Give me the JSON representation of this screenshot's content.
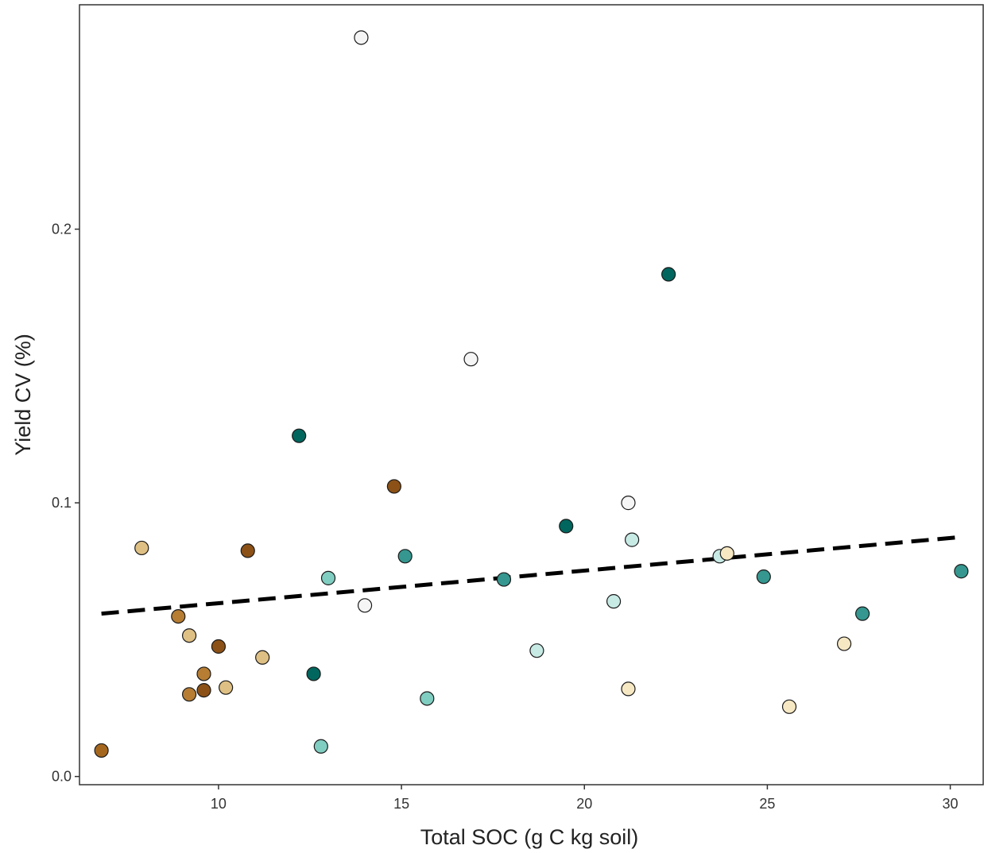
{
  "chart_data": {
    "type": "scatter",
    "title": "",
    "xlabel": "Total SOC (g C kg soil)",
    "ylabel": "Yield CV (%)",
    "xlim": [
      6.2,
      30.9
    ],
    "ylim": [
      -0.003,
      0.282
    ],
    "x_ticks": [
      10,
      15,
      20,
      25,
      30
    ],
    "y_ticks": [
      0.0,
      0.1,
      0.2
    ],
    "x_tick_labels": [
      "10",
      "15",
      "20",
      "25",
      "30"
    ],
    "y_tick_labels": [
      "0.0",
      "0.1",
      "0.2"
    ],
    "grid": false,
    "legend": "none",
    "trend_line": {
      "style": "dashed",
      "color": "#000000",
      "x": [
        6.8,
        30.3
      ],
      "y": [
        0.0595,
        0.0875
      ]
    },
    "points": [
      {
        "x": 6.8,
        "y": 0.0095,
        "color": "#a5671e"
      },
      {
        "x": 7.9,
        "y": 0.0835,
        "color": "#dfc084"
      },
      {
        "x": 8.9,
        "y": 0.0585,
        "color": "#b67d33"
      },
      {
        "x": 9.2,
        "y": 0.0515,
        "color": "#dfc084"
      },
      {
        "x": 9.2,
        "y": 0.03,
        "color": "#b67d33"
      },
      {
        "x": 9.6,
        "y": 0.0375,
        "color": "#b67d33"
      },
      {
        "x": 9.6,
        "y": 0.0315,
        "color": "#8c5116"
      },
      {
        "x": 10.0,
        "y": 0.0475,
        "color": "#8c5116"
      },
      {
        "x": 10.2,
        "y": 0.0325,
        "color": "#dfc084"
      },
      {
        "x": 10.8,
        "y": 0.0825,
        "color": "#8c5116"
      },
      {
        "x": 11.2,
        "y": 0.0435,
        "color": "#dfc084"
      },
      {
        "x": 12.2,
        "y": 0.1245,
        "color": "#01665e"
      },
      {
        "x": 12.6,
        "y": 0.0375,
        "color": "#01665e"
      },
      {
        "x": 12.8,
        "y": 0.011,
        "color": "#80cdc1"
      },
      {
        "x": 13.0,
        "y": 0.0725,
        "color": "#80cdc1"
      },
      {
        "x": 13.9,
        "y": 0.27,
        "color": "#f5f5f5"
      },
      {
        "x": 14.0,
        "y": 0.0625,
        "color": "#f5f5f5"
      },
      {
        "x": 14.8,
        "y": 0.106,
        "color": "#8c5116"
      },
      {
        "x": 15.1,
        "y": 0.0805,
        "color": "#35978f"
      },
      {
        "x": 15.7,
        "y": 0.0285,
        "color": "#80cdc1"
      },
      {
        "x": 16.9,
        "y": 0.1525,
        "color": "#f5f5f5"
      },
      {
        "x": 17.8,
        "y": 0.072,
        "color": "#35978f"
      },
      {
        "x": 18.7,
        "y": 0.046,
        "color": "#c7eae5"
      },
      {
        "x": 19.5,
        "y": 0.0915,
        "color": "#01665e"
      },
      {
        "x": 20.8,
        "y": 0.064,
        "color": "#c7eae5"
      },
      {
        "x": 21.2,
        "y": 0.1,
        "color": "#f5f5f5"
      },
      {
        "x": 21.2,
        "y": 0.032,
        "color": "#f6e8c3"
      },
      {
        "x": 21.3,
        "y": 0.0865,
        "color": "#c7eae5"
      },
      {
        "x": 22.3,
        "y": 0.1835,
        "color": "#01665e"
      },
      {
        "x": 23.7,
        "y": 0.0805,
        "color": "#c7eae5"
      },
      {
        "x": 23.9,
        "y": 0.0815,
        "color": "#f6e8c3"
      },
      {
        "x": 24.9,
        "y": 0.073,
        "color": "#35978f"
      },
      {
        "x": 25.6,
        "y": 0.0255,
        "color": "#f6e8c3"
      },
      {
        "x": 27.1,
        "y": 0.0485,
        "color": "#f6e8c3"
      },
      {
        "x": 27.6,
        "y": 0.0595,
        "color": "#35978f"
      },
      {
        "x": 30.3,
        "y": 0.075,
        "color": "#35978f"
      }
    ]
  }
}
